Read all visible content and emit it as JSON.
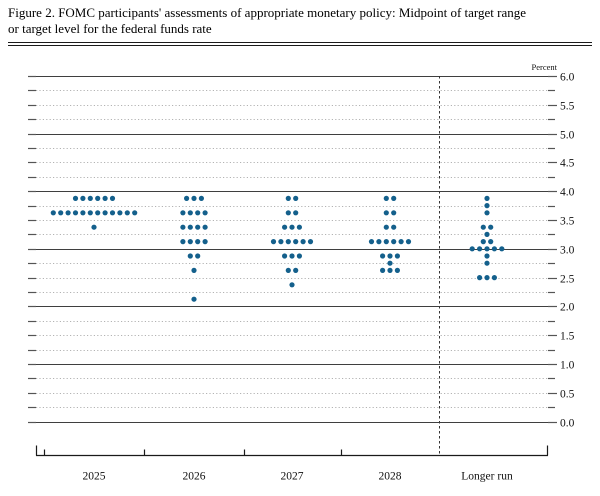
{
  "figure": {
    "title_line1": "Figure 2. FOMC participants' assessments of appropriate monetary policy: Midpoint of target range",
    "title_line2": "or target level for the federal funds rate"
  },
  "chart_data": {
    "type": "scatter",
    "subtype": "fomc-dot-plot",
    "title": "Figure 2. FOMC participants' assessments of appropriate monetary policy: Midpoint of target range or target level for the federal funds rate",
    "unit_label": "Percent",
    "ylim": [
      0.0,
      6.0
    ],
    "grid_interval": 0.25,
    "label_interval": 0.5,
    "y_tick_labels": [
      "6.0",
      "5.5",
      "5.0",
      "4.5",
      "4.0",
      "3.5",
      "3.0",
      "2.5",
      "2.0",
      "1.5",
      "1.0",
      "0.5",
      "0.0"
    ],
    "categories": [
      "2025",
      "2026",
      "2027",
      "2028",
      "Longer run"
    ],
    "series": [
      {
        "name": "2025",
        "dots": [
          {
            "value": 3.875,
            "count": 6
          },
          {
            "value": 3.625,
            "count": 12
          },
          {
            "value": 3.375,
            "count": 1
          }
        ]
      },
      {
        "name": "2026",
        "dots": [
          {
            "value": 3.875,
            "count": 3
          },
          {
            "value": 3.625,
            "count": 4
          },
          {
            "value": 3.375,
            "count": 4
          },
          {
            "value": 3.125,
            "count": 4
          },
          {
            "value": 2.875,
            "count": 2
          },
          {
            "value": 2.625,
            "count": 1
          },
          {
            "value": 2.125,
            "count": 1
          }
        ]
      },
      {
        "name": "2027",
        "dots": [
          {
            "value": 3.875,
            "count": 2
          },
          {
            "value": 3.625,
            "count": 2
          },
          {
            "value": 3.375,
            "count": 3
          },
          {
            "value": 3.125,
            "count": 6
          },
          {
            "value": 2.875,
            "count": 3
          },
          {
            "value": 2.625,
            "count": 2
          },
          {
            "value": 2.375,
            "count": 1
          }
        ]
      },
      {
        "name": "2028",
        "dots": [
          {
            "value": 3.875,
            "count": 2
          },
          {
            "value": 3.625,
            "count": 2
          },
          {
            "value": 3.375,
            "count": 2
          },
          {
            "value": 3.125,
            "count": 6
          },
          {
            "value": 2.875,
            "count": 3
          },
          {
            "value": 2.75,
            "count": 1
          },
          {
            "value": 2.625,
            "count": 3
          }
        ]
      },
      {
        "name": "Longer run",
        "dots": [
          {
            "value": 3.875,
            "count": 1
          },
          {
            "value": 3.75,
            "count": 1
          },
          {
            "value": 3.625,
            "count": 1
          },
          {
            "value": 3.375,
            "count": 2
          },
          {
            "value": 3.25,
            "count": 1
          },
          {
            "value": 3.125,
            "count": 2
          },
          {
            "value": 3.0,
            "count": 5
          },
          {
            "value": 2.875,
            "count": 1
          },
          {
            "value": 2.75,
            "count": 1
          },
          {
            "value": 2.5,
            "count": 3
          }
        ]
      }
    ],
    "legend": null,
    "grid": "solid integer lines, dotted quarter lines",
    "colors": {
      "dot": "#14608c",
      "solid_grid": "#3f3f3f",
      "dotted_grid": "#b3b3b3",
      "axis": "#1a1a1a",
      "tick": "#555555"
    }
  }
}
